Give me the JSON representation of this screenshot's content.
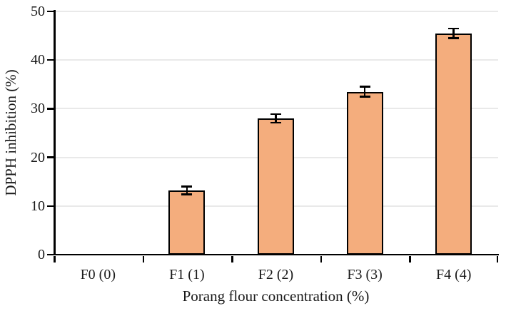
{
  "chart_data": {
    "type": "bar",
    "title": "",
    "categories": [
      "F0 (0)",
      "F1 (1)",
      "F2 (2)",
      "F3 (3)",
      "F4 (4)"
    ],
    "values": [
      0,
      13.2,
      28.0,
      33.5,
      45.5
    ],
    "error_bars": [
      0,
      0.8,
      0.9,
      1.0,
      1.0
    ],
    "xlabel": "Porang flour concentration (%)",
    "ylabel": "DPPH inhibition (%)",
    "ylim": [
      0,
      50
    ],
    "yticks": [
      0,
      10,
      20,
      30,
      40,
      50
    ],
    "grid": "horizontal",
    "legend": "none",
    "colors": {
      "bar_fill": "#F4AD7D",
      "bar_border": "#000000",
      "gridline": "#E9E9E9",
      "axis": "#000000",
      "text": "#1A1A1A",
      "background": "#FFFFFF"
    }
  }
}
